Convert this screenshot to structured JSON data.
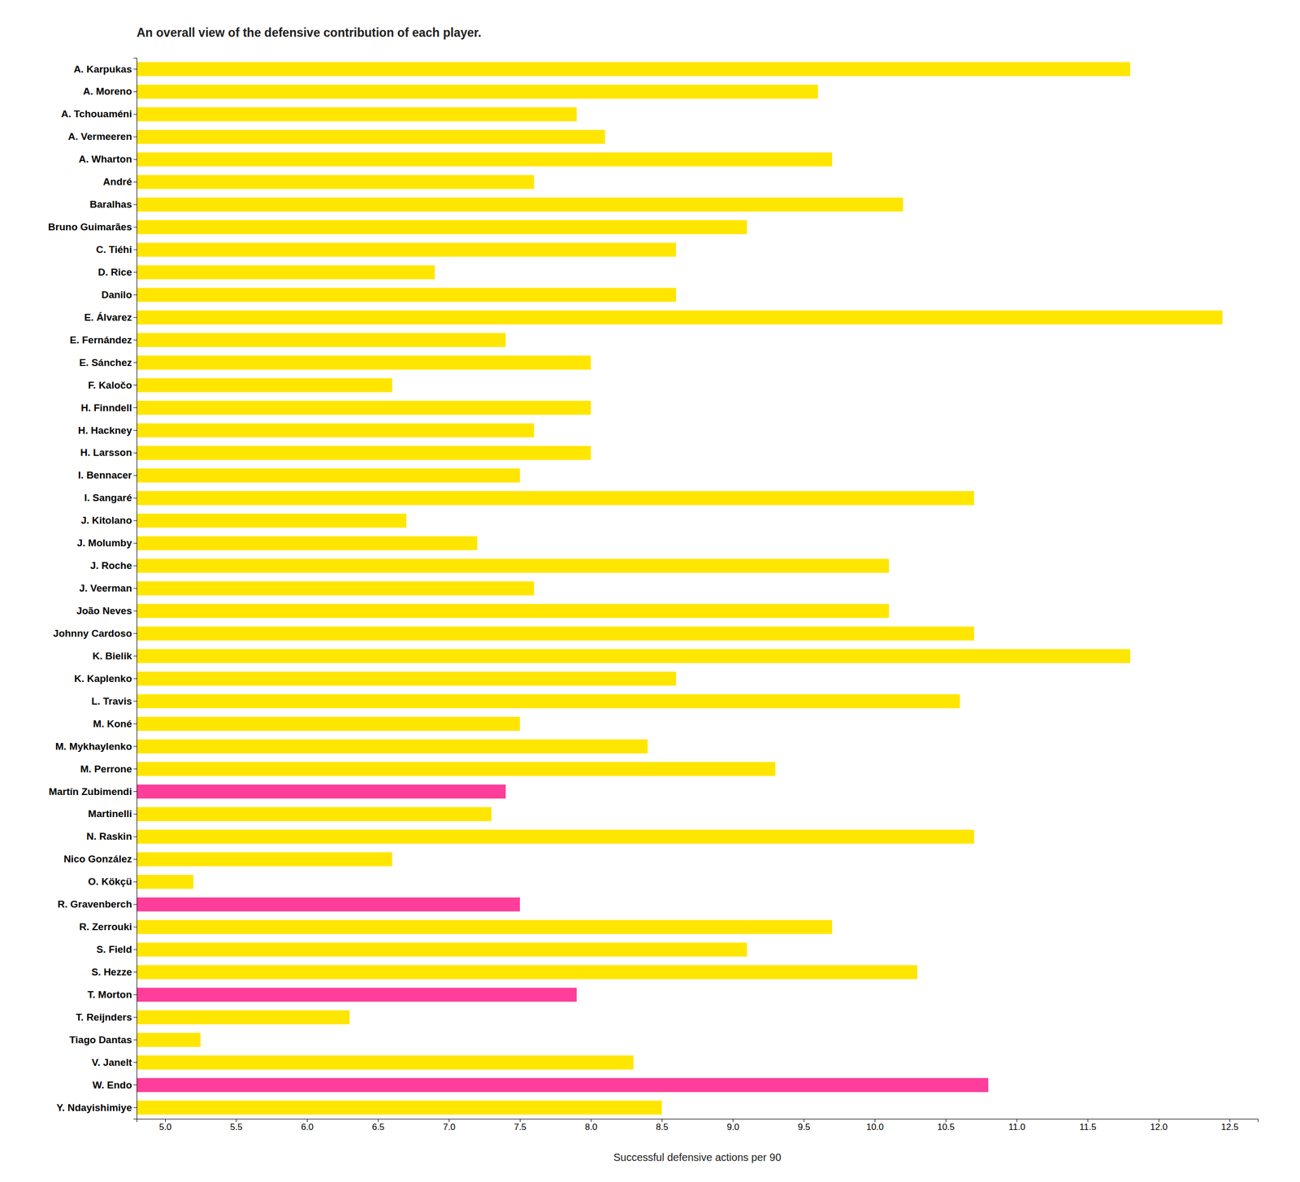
{
  "chart_data": {
    "type": "bar",
    "orientation": "horizontal",
    "title": "An overall view of the defensive contribution of each player.",
    "xlabel": "Successful defensive actions per 90",
    "categories": [
      "A. Karpukas",
      "A. Moreno",
      "A. Tchouaméni",
      "A. Vermeeren",
      "A. Wharton",
      "André",
      "Baralhas",
      "Bruno Guimarães",
      "C. Tiéhi",
      "D. Rice",
      "Danilo",
      "E. Álvarez",
      "E. Fernández",
      "E. Sánchez",
      "F. Kaločo",
      "H. Finndell",
      "H. Hackney",
      "H. Larsson",
      "I. Bennacer",
      "I. Sangaré",
      "J. Kitolano",
      "J. Molumby",
      "J. Roche",
      "J. Veerman",
      "João Neves",
      "Johnny Cardoso",
      "K. Bielik",
      "K. Kaplenko",
      "L. Travis",
      "M. Koné",
      "M. Mykhaylenko",
      "M. Perrone",
      "Martín Zubimendi",
      "Martinelli",
      "N. Raskin",
      "Nico González",
      "O. Kökçü",
      "R. Gravenberch",
      "R. Zerrouki",
      "S. Field",
      "S. Hezze",
      "T. Morton",
      "T. Reijnders",
      "Tiago Dantas",
      "V. Janelt",
      "W. Endo",
      "Y. Ndayishimiye"
    ],
    "values": [
      11.8,
      9.6,
      7.9,
      8.1,
      9.7,
      7.6,
      10.2,
      9.1,
      8.6,
      6.9,
      8.6,
      12.45,
      7.4,
      8.0,
      6.6,
      8.0,
      7.6,
      8.0,
      7.5,
      10.7,
      6.7,
      7.2,
      10.1,
      7.6,
      10.1,
      10.7,
      11.8,
      8.6,
      10.6,
      7.5,
      8.4,
      9.3,
      7.4,
      7.3,
      10.7,
      6.6,
      5.2,
      7.5,
      9.7,
      9.1,
      10.3,
      7.9,
      6.3,
      5.25,
      8.3,
      10.8,
      8.5
    ],
    "colors": [
      "#ffe600",
      "#ffe600",
      "#ffe600",
      "#ffe600",
      "#ffe600",
      "#ffe600",
      "#ffe600",
      "#ffe600",
      "#ffe600",
      "#ffe600",
      "#ffe600",
      "#ffe600",
      "#ffe600",
      "#ffe600",
      "#ffe600",
      "#ffe600",
      "#ffe600",
      "#ffe600",
      "#ffe600",
      "#ffe600",
      "#ffe600",
      "#ffe600",
      "#ffe600",
      "#ffe600",
      "#ffe600",
      "#ffe600",
      "#ffe600",
      "#ffe600",
      "#ffe600",
      "#ffe600",
      "#ffe600",
      "#ffe600",
      "#ff3d9a",
      "#ffe600",
      "#ffe600",
      "#ffe600",
      "#ffe600",
      "#ff3d9a",
      "#ffe600",
      "#ffe600",
      "#ffe600",
      "#ff3d9a",
      "#ffe600",
      "#ffe600",
      "#ffe600",
      "#ff3d9a",
      "#ffe600"
    ],
    "xlim": [
      4.8,
      12.7
    ],
    "xticks": [
      {
        "value": 5.0,
        "label": "5.0"
      },
      5.5,
      {
        "value": 6.0,
        "label": "6.0"
      },
      6.5,
      {
        "value": 7.0,
        "label": "7.0"
      },
      7.5,
      {
        "value": 8.0,
        "label": "8.0"
      },
      8.5,
      {
        "value": 9.0,
        "label": "9.0"
      },
      9.5,
      {
        "value": 10.0,
        "label": "10.0"
      },
      10.5,
      {
        "value": 11.0,
        "label": "11.0"
      },
      11.5,
      {
        "value": 12.0,
        "label": "12.0"
      },
      12.5
    ],
    "grid": false
  }
}
